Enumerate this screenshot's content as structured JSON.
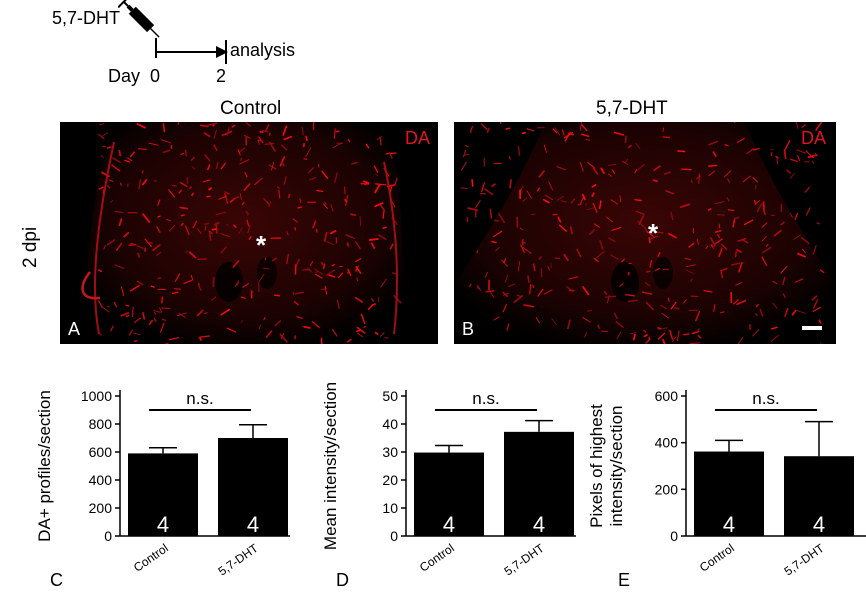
{
  "timeline": {
    "drug_label": "5,7-DHT",
    "day_label": "Day",
    "start_tick": "0",
    "end_tick": "2",
    "endpoint_label": "analysis"
  },
  "columns": {
    "left_title": "Control",
    "right_title": "5,7-DHT"
  },
  "row_label": "2 dpi",
  "panels": [
    {
      "letter": "A",
      "stain": "DA",
      "asterisk": "*"
    },
    {
      "letter": "B",
      "stain": "DA",
      "asterisk": "*"
    }
  ],
  "chart_data": [
    {
      "type": "bar",
      "panel_letter": "C",
      "categories": [
        "Control",
        "5,7-DHT"
      ],
      "values": [
        590,
        700
      ],
      "errors": [
        40,
        95
      ],
      "n_labels": [
        "4",
        "4"
      ],
      "ylabel": "DA+ profiles/section",
      "ylim": [
        0,
        1000
      ],
      "yticks": [
        0,
        200,
        400,
        600,
        800,
        1000
      ],
      "significance": "n.s."
    },
    {
      "type": "bar",
      "panel_letter": "D",
      "categories": [
        "Control",
        "5,7-DHT"
      ],
      "values": [
        29.8,
        37.2
      ],
      "errors": [
        2.5,
        4.0
      ],
      "n_labels": [
        "4",
        "4"
      ],
      "ylabel": "Mean intensity/section",
      "ylim": [
        0,
        50
      ],
      "yticks": [
        0,
        10,
        20,
        30,
        40,
        50
      ],
      "significance": "n.s."
    },
    {
      "type": "bar",
      "panel_letter": "E",
      "categories": [
        "Control",
        "5,7-DHT"
      ],
      "values": [
        362,
        342
      ],
      "errors": [
        48,
        148
      ],
      "n_labels": [
        "4",
        "4"
      ],
      "ylabel": "Pixels of highest intensity/section",
      "ylabel_lines": [
        "Pixels of highest",
        "intensity/section"
      ],
      "ylim": [
        0,
        600
      ],
      "yticks": [
        0,
        200,
        400,
        600
      ],
      "significance": "n.s."
    }
  ]
}
